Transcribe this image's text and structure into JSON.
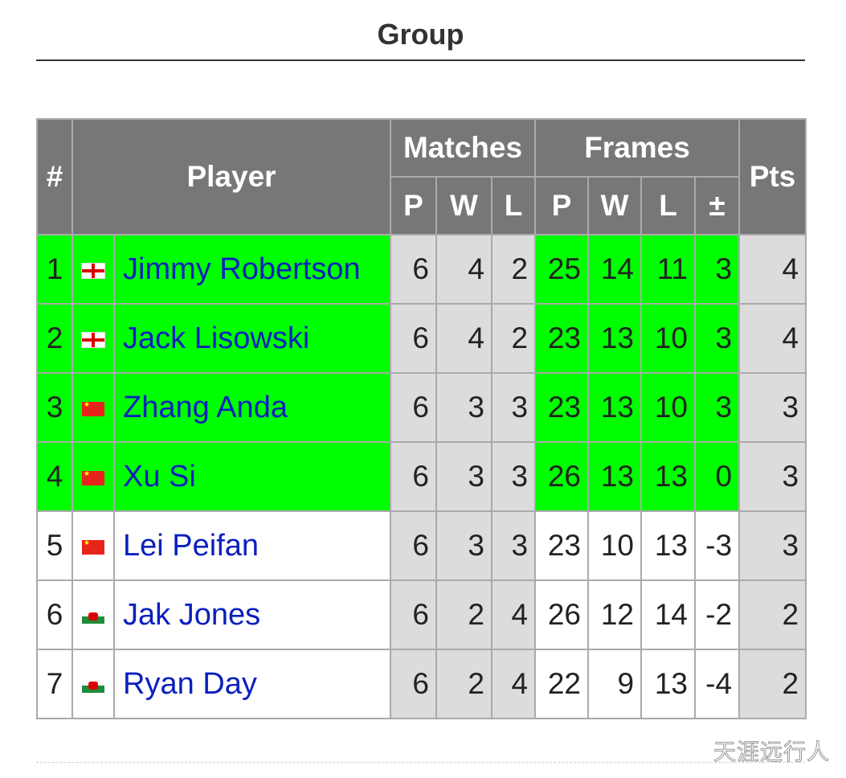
{
  "title": "Group",
  "headers": {
    "rank": "#",
    "player": "Player",
    "matches": "Matches",
    "frames": "Frames",
    "pts": "Pts",
    "p": "P",
    "w": "W",
    "l": "L",
    "diff": "±"
  },
  "colors": {
    "advance": "#00ff00",
    "header": "#777777",
    "link": "#0a1fbf"
  },
  "rows": [
    {
      "rank": "1",
      "flag": "england-flag",
      "name": "Jimmy Robertson",
      "mp": "6",
      "mw": "4",
      "ml": "2",
      "fp": "25",
      "fw": "14",
      "fl": "11",
      "fd": "3",
      "pts": "4",
      "advance": true
    },
    {
      "rank": "2",
      "flag": "england-flag",
      "name": "Jack Lisowski",
      "mp": "6",
      "mw": "4",
      "ml": "2",
      "fp": "23",
      "fw": "13",
      "fl": "10",
      "fd": "3",
      "pts": "4",
      "advance": true
    },
    {
      "rank": "3",
      "flag": "china-flag",
      "name": "Zhang Anda",
      "mp": "6",
      "mw": "3",
      "ml": "3",
      "fp": "23",
      "fw": "13",
      "fl": "10",
      "fd": "3",
      "pts": "3",
      "advance": true
    },
    {
      "rank": "4",
      "flag": "china-flag",
      "name": "Xu Si",
      "mp": "6",
      "mw": "3",
      "ml": "3",
      "fp": "26",
      "fw": "13",
      "fl": "13",
      "fd": "0",
      "pts": "3",
      "advance": true
    },
    {
      "rank": "5",
      "flag": "china-flag",
      "name": "Lei Peifan",
      "mp": "6",
      "mw": "3",
      "ml": "3",
      "fp": "23",
      "fw": "10",
      "fl": "13",
      "fd": "-3",
      "pts": "3",
      "advance": false
    },
    {
      "rank": "6",
      "flag": "wales-flag",
      "name": "Jak Jones",
      "mp": "6",
      "mw": "2",
      "ml": "4",
      "fp": "26",
      "fw": "12",
      "fl": "14",
      "fd": "-2",
      "pts": "2",
      "advance": false
    },
    {
      "rank": "7",
      "flag": "wales-flag",
      "name": "Ryan Day",
      "mp": "6",
      "mw": "2",
      "ml": "4",
      "fp": "22",
      "fw": "9",
      "fl": "13",
      "fd": "-4",
      "pts": "2",
      "advance": false
    }
  ],
  "watermark": "天涯远行人"
}
